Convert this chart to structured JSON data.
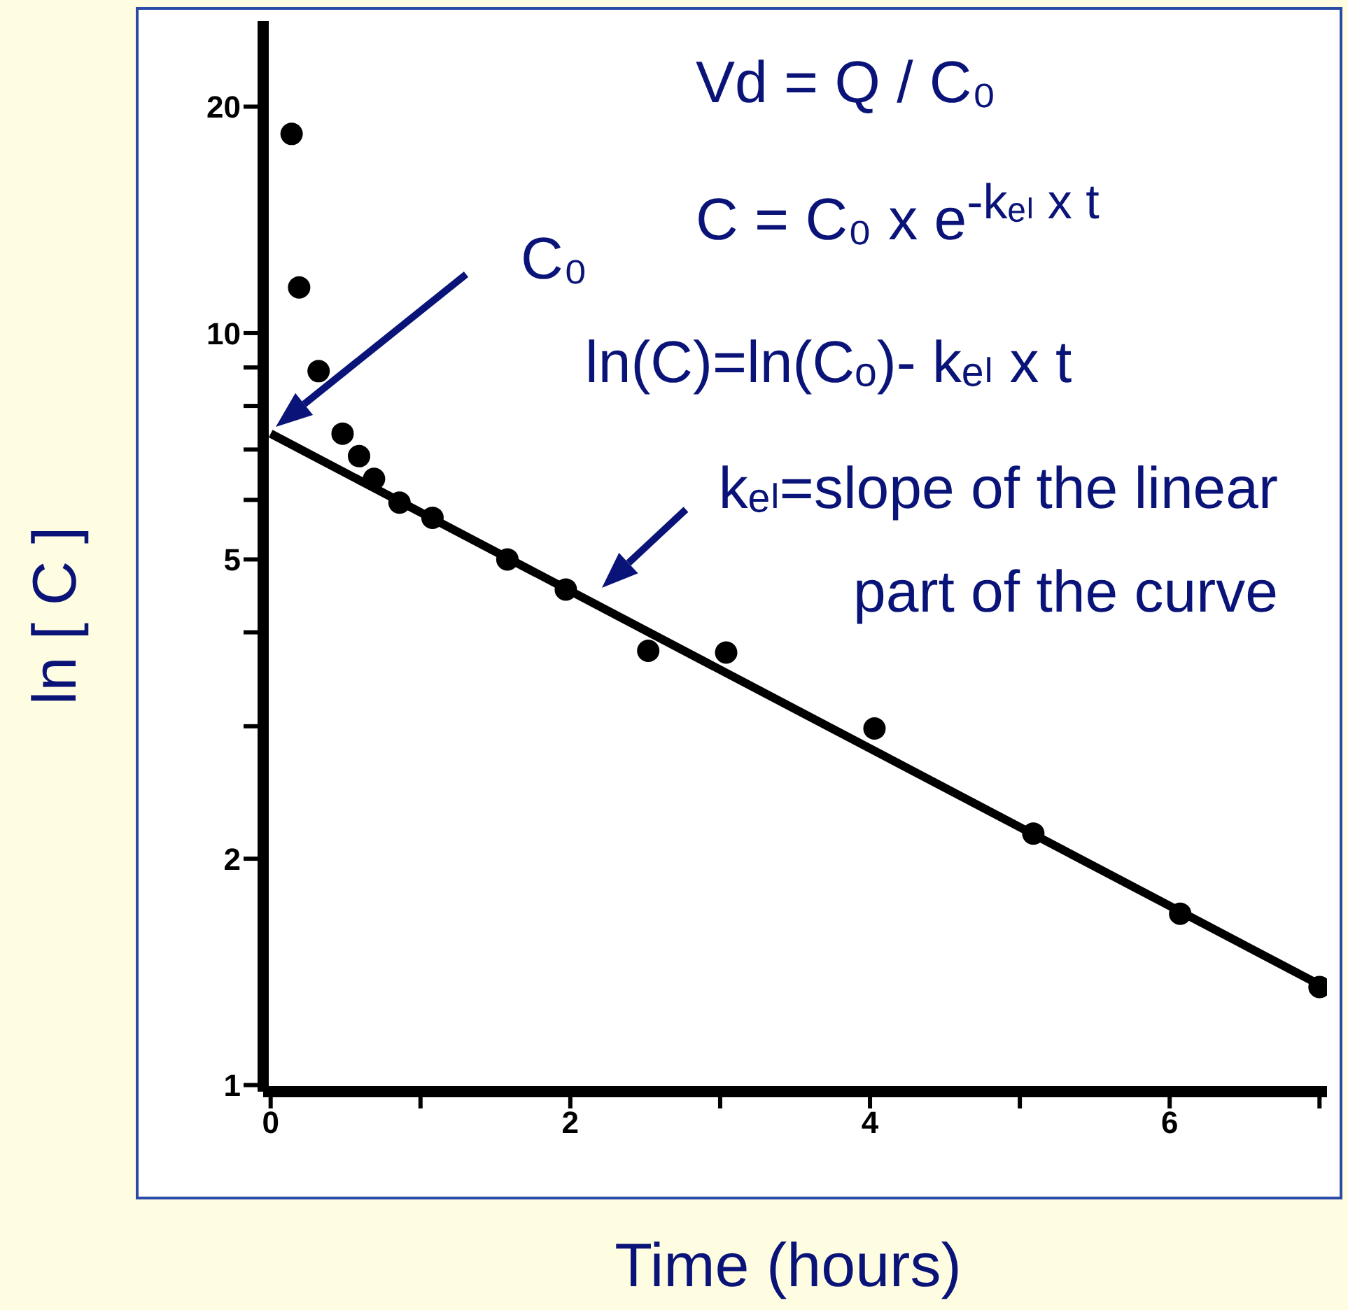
{
  "chart_data": {
    "type": "scatter",
    "xlabel": "Time (hours)",
    "ylabel": "ln [ C ]",
    "log": "y",
    "xlim": [
      -0.05,
      7.05
    ],
    "ylim": [
      0.98,
      26
    ],
    "xticks": [
      0,
      {
        "value": 1,
        "label": null
      },
      2,
      {
        "value": 3,
        "label": null
      },
      4,
      {
        "value": 5,
        "label": null
      },
      6,
      {
        "value": 7,
        "label": null
      }
    ],
    "yticks": [
      1,
      2,
      {
        "value": 3,
        "label": null
      },
      {
        "value": 4,
        "label": null
      },
      5,
      {
        "value": 6,
        "label": null
      },
      {
        "value": 7,
        "label": null
      },
      {
        "value": 8,
        "label": null
      },
      {
        "value": 9,
        "label": null
      },
      10,
      20
    ],
    "series": [
      {
        "marker": "circle",
        "color": "#000000",
        "x": [
          0.14,
          0.19,
          0.32,
          0.48,
          0.59,
          0.69,
          0.86,
          1.08,
          1.58,
          1.97,
          2.52,
          3.04,
          4.03,
          5.09,
          6.07,
          7.0
        ],
        "values": [
          18.4,
          11.5,
          8.9,
          7.35,
          6.86,
          6.4,
          5.95,
          5.68,
          5.0,
          4.56,
          3.78,
          3.76,
          2.98,
          2.16,
          1.69,
          1.35
        ]
      },
      {
        "type": "line",
        "color": "#000000",
        "x": [
          0,
          7
        ],
        "values": [
          7.35,
          1.36
        ]
      }
    ],
    "annotations": [
      "Vd = Q / C₀",
      "C = C₀ x e$^{-kₑₗ x t}$",
      "ln(C)=ln(Cₒ)- kₑₗ x t",
      "C₀",
      "kₑₗ=slope of the linear part of the curve"
    ]
  }
}
